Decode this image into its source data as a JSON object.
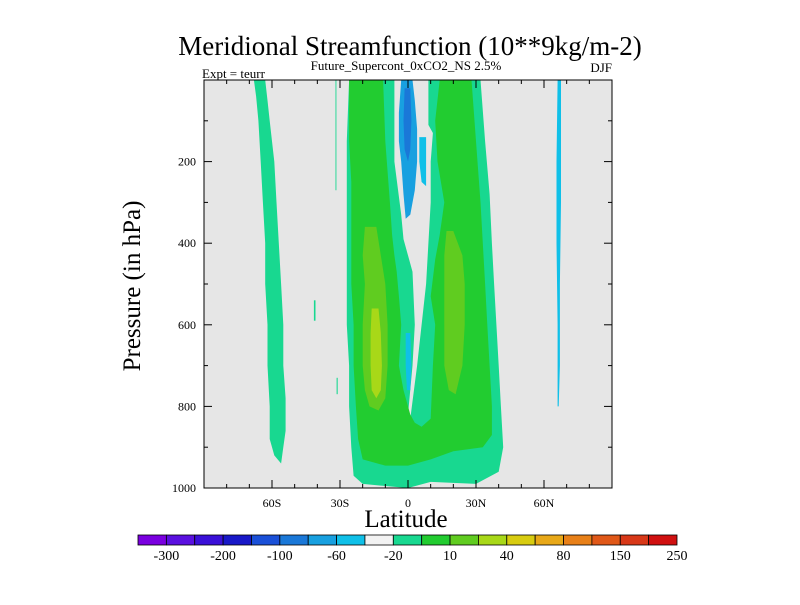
{
  "chart_data": {
    "type": "heatmap",
    "title": "Meridional Streamfunction (10**9kg/m-2)",
    "subtitle": "Future_Supercont_0xCO2_NS 2.5%",
    "left_annotation": "Expt = teurr",
    "right_annotation": "DJF",
    "xlabel": "Latitude",
    "ylabel": "Pressure (in hPa)",
    "xlim": [
      -90,
      90
    ],
    "ylim": [
      1000,
      0
    ],
    "x_ticks": [
      {
        "value": -60,
        "label": "60S"
      },
      {
        "value": -30,
        "label": "30S"
      },
      {
        "value": 0,
        "label": "0"
      },
      {
        "value": 30,
        "label": "30N"
      },
      {
        "value": 60,
        "label": "60N"
      }
    ],
    "y_ticks": [
      {
        "value": 200,
        "label": "200"
      },
      {
        "value": 400,
        "label": "400"
      },
      {
        "value": 600,
        "label": "600"
      },
      {
        "value": 800,
        "label": "800"
      },
      {
        "value": 1000,
        "label": "1000"
      }
    ],
    "missing_color": "#e6e6e6",
    "colorbar": {
      "colors": [
        "#7a00e0",
        "#5a10e0",
        "#3a10d8",
        "#1818c8",
        "#1a50d8",
        "#1a78d8",
        "#18a0e0",
        "#10c0e8",
        "#f2f2f2",
        "#18d890",
        "#22cc30",
        "#60cc20",
        "#a8d818",
        "#d8cc10",
        "#e8a818",
        "#e88018",
        "#e05818",
        "#d83818",
        "#d01010"
      ],
      "boundaries": [
        -300,
        -250,
        -200,
        -150,
        -100,
        -80,
        -60,
        -40,
        -20,
        -10,
        10,
        20,
        40,
        60,
        80,
        100,
        150,
        200,
        250,
        300
      ],
      "labels": [
        "-300",
        "-200",
        "-100",
        "-60",
        "-20",
        "10",
        "40",
        "80",
        "150",
        "250"
      ]
    },
    "regions": [
      {
        "name": "green-light-sh-high-lat",
        "level": "10 to 20",
        "color": "#18d890",
        "polygon": [
          [
            -68,
            0
          ],
          [
            -63,
            0
          ],
          [
            -62,
            50
          ],
          [
            -61,
            100
          ],
          [
            -59,
            200
          ],
          [
            -58,
            300
          ],
          [
            -57,
            400
          ],
          [
            -56,
            500
          ],
          [
            -55,
            600
          ],
          [
            -55,
            700
          ],
          [
            -54,
            780
          ],
          [
            -54,
            860
          ],
          [
            -55,
            900
          ],
          [
            -56,
            940
          ],
          [
            -59,
            920
          ],
          [
            -61,
            880
          ],
          [
            -61,
            800
          ],
          [
            -62,
            700
          ],
          [
            -62,
            600
          ],
          [
            -63,
            500
          ],
          [
            -63,
            400
          ],
          [
            -64,
            300
          ],
          [
            -65,
            200
          ],
          [
            -66,
            100
          ],
          [
            -67,
            40
          ]
        ]
      },
      {
        "name": "green-light-center-band",
        "level": "10 to 20",
        "color": "#18d890",
        "polygon": [
          [
            -26,
            0
          ],
          [
            -6,
            0
          ],
          [
            -6,
            200
          ],
          [
            -3,
            330
          ],
          [
            -2,
            390
          ],
          [
            0,
            430
          ],
          [
            2,
            470
          ],
          [
            3,
            600
          ],
          [
            2,
            700
          ],
          [
            0,
            820
          ],
          [
            1,
            830
          ],
          [
            4,
            700
          ],
          [
            6,
            600
          ],
          [
            8,
            500
          ],
          [
            10,
            300
          ],
          [
            10,
            200
          ],
          [
            11,
            130
          ],
          [
            9,
            110
          ],
          [
            9,
            0
          ],
          [
            32,
            0
          ],
          [
            34,
            150
          ],
          [
            36,
            280
          ],
          [
            37,
            400
          ],
          [
            38,
            500
          ],
          [
            39,
            600
          ],
          [
            40,
            700
          ],
          [
            41,
            800
          ],
          [
            42,
            900
          ],
          [
            40,
            960
          ],
          [
            30,
            990
          ],
          [
            10,
            985
          ],
          [
            0,
            1000
          ],
          [
            -10,
            995
          ],
          [
            -20,
            990
          ],
          [
            -24,
            970
          ],
          [
            -25,
            900
          ],
          [
            -26,
            800
          ],
          [
            -26,
            700
          ],
          [
            -27,
            600
          ],
          [
            -27,
            500
          ],
          [
            -27,
            300
          ],
          [
            -27,
            150
          ]
        ]
      },
      {
        "name": "green-light-sh-thin-sliver",
        "level": "10 to 20",
        "color": "#18d890",
        "polygon": [
          [
            -32,
            0
          ],
          [
            -31.6,
            0
          ],
          [
            -31.6,
            270
          ],
          [
            -32,
            270
          ]
        ]
      },
      {
        "name": "green-light-sh-dot",
        "level": "10 to 20",
        "color": "#18d890",
        "polygon": [
          [
            -41.5,
            540
          ],
          [
            -40.8,
            540
          ],
          [
            -40.8,
            590
          ],
          [
            -41.5,
            590
          ]
        ]
      },
      {
        "name": "green-light-bottom-dot",
        "level": "10 to 20",
        "color": "#18d890",
        "polygon": [
          [
            -31.5,
            730
          ],
          [
            -31,
            730
          ],
          [
            -31,
            770
          ],
          [
            -31.5,
            770
          ]
        ]
      },
      {
        "name": "green-center-sh-band",
        "level": "20 to 40",
        "color": "#22cc30",
        "polygon": [
          [
            -26,
            0
          ],
          [
            -11,
            0
          ],
          [
            -10,
            150
          ],
          [
            -8,
            300
          ],
          [
            -7,
            380
          ],
          [
            -6,
            430
          ],
          [
            -5,
            470
          ],
          [
            -4,
            530
          ],
          [
            -3,
            600
          ],
          [
            -4,
            700
          ],
          [
            -2,
            760
          ],
          [
            1,
            820
          ],
          [
            3,
            840
          ],
          [
            6,
            850
          ],
          [
            10,
            830
          ],
          [
            11,
            700
          ],
          [
            12,
            600
          ],
          [
            10,
            530
          ],
          [
            12,
            440
          ],
          [
            14,
            380
          ],
          [
            16,
            300
          ],
          [
            13,
            200
          ],
          [
            12,
            100
          ],
          [
            14,
            0
          ],
          [
            28,
            0
          ],
          [
            30,
            150
          ],
          [
            32,
            300
          ],
          [
            33,
            400
          ],
          [
            34,
            500
          ],
          [
            35,
            600
          ],
          [
            36,
            700
          ],
          [
            37,
            800
          ],
          [
            37,
            870
          ],
          [
            33,
            900
          ],
          [
            20,
            910
          ],
          [
            10,
            930
          ],
          [
            0,
            945
          ],
          [
            -10,
            945
          ],
          [
            -20,
            930
          ],
          [
            -22,
            880
          ],
          [
            -23,
            800
          ],
          [
            -24,
            700
          ],
          [
            -24,
            600
          ],
          [
            -25,
            500
          ],
          [
            -25,
            400
          ],
          [
            -25,
            250
          ],
          [
            -26,
            150
          ]
        ]
      },
      {
        "name": "lime-sh-max",
        "level": "40 to 60",
        "color": "#60cc20",
        "polygon": [
          [
            -19,
            360
          ],
          [
            -14,
            360
          ],
          [
            -12,
            430
          ],
          [
            -10,
            500
          ],
          [
            -9,
            600
          ],
          [
            -9,
            700
          ],
          [
            -10,
            780
          ],
          [
            -13,
            810
          ],
          [
            -17,
            800
          ],
          [
            -19,
            760
          ],
          [
            -20,
            700
          ],
          [
            -20,
            600
          ],
          [
            -19,
            500
          ],
          [
            -20,
            430
          ]
        ]
      },
      {
        "name": "lime-nh-max",
        "level": "40 to 60",
        "color": "#60cc20",
        "polygon": [
          [
            17,
            370
          ],
          [
            20,
            370
          ],
          [
            24,
            430
          ],
          [
            25,
            500
          ],
          [
            25,
            600
          ],
          [
            24,
            700
          ],
          [
            21,
            770
          ],
          [
            18,
            760
          ],
          [
            16,
            700
          ],
          [
            16,
            600
          ],
          [
            16,
            500
          ],
          [
            16,
            430
          ]
        ]
      },
      {
        "name": "yellow-green-sh-core",
        "level": "60 to 80",
        "color": "#a8d818",
        "polygon": [
          [
            -16,
            560
          ],
          [
            -13,
            560
          ],
          [
            -12,
            620
          ],
          [
            -11.5,
            700
          ],
          [
            -12,
            760
          ],
          [
            -14,
            780
          ],
          [
            -16,
            760
          ],
          [
            -16.5,
            700
          ],
          [
            -16.5,
            620
          ]
        ]
      },
      {
        "name": "blue-equatorial-column",
        "level": "-40 to -20",
        "color": "#18a0e0",
        "polygon": [
          [
            -3,
            0
          ],
          [
            2,
            0
          ],
          [
            3,
            50
          ],
          [
            4,
            120
          ],
          [
            4,
            200
          ],
          [
            3,
            270
          ],
          [
            1,
            330
          ],
          [
            -1,
            340
          ],
          [
            -2,
            280
          ],
          [
            -3,
            200
          ],
          [
            -4,
            150
          ],
          [
            -4,
            80
          ]
        ]
      },
      {
        "name": "blue-equatorial-core",
        "level": "-60 to -40",
        "color": "#1a78d8",
        "polygon": [
          [
            -1.5,
            20
          ],
          [
            1,
            20
          ],
          [
            1.5,
            100
          ],
          [
            1,
            170
          ],
          [
            0,
            200
          ],
          [
            -1.5,
            170
          ],
          [
            -2,
            100
          ]
        ]
      },
      {
        "name": "blue-nh-small-patch",
        "level": "-20 to -10",
        "color": "#10c0e8",
        "polygon": [
          [
            5,
            140
          ],
          [
            8,
            140
          ],
          [
            8,
            260
          ],
          [
            6,
            250
          ],
          [
            5,
            200
          ]
        ]
      },
      {
        "name": "blue-nh-thin-column",
        "level": "-20 to -10",
        "color": "#10c0e8",
        "polygon": [
          [
            66,
            0
          ],
          [
            67.5,
            0
          ],
          [
            67.5,
            300
          ],
          [
            67,
            500
          ],
          [
            67,
            700
          ],
          [
            66.5,
            800
          ],
          [
            66,
            800
          ],
          [
            66,
            600
          ],
          [
            65.5,
            400
          ],
          [
            65.5,
            200
          ]
        ]
      },
      {
        "name": "blue-mid-small-patch",
        "level": "-20 to -10",
        "color": "#10c0e8",
        "polygon": [
          [
            -1,
            620
          ],
          [
            1,
            620
          ],
          [
            1.5,
            700
          ],
          [
            1,
            760
          ],
          [
            -0.5,
            760
          ],
          [
            -1,
            700
          ]
        ]
      }
    ]
  }
}
